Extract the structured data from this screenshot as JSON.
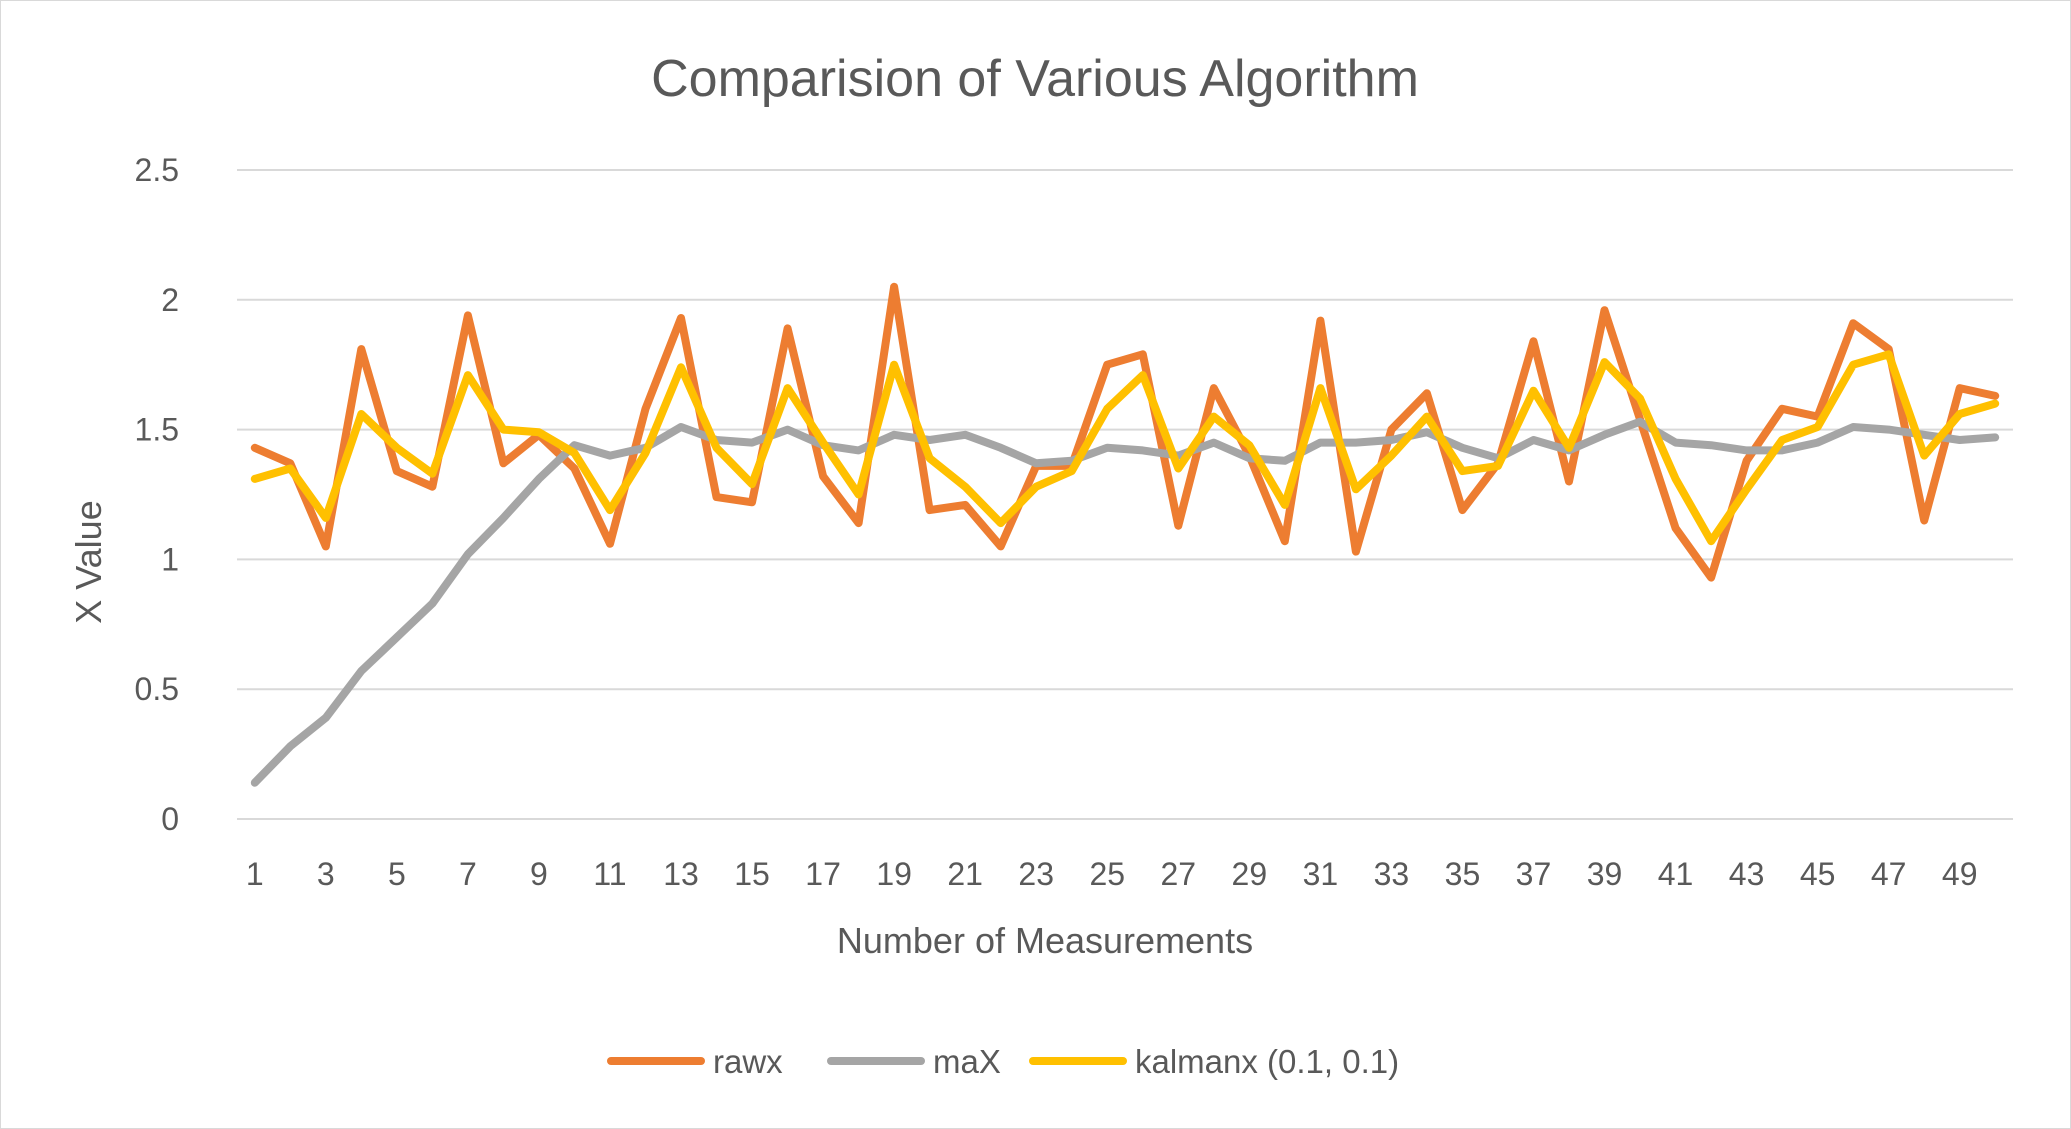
{
  "chart_data": {
    "type": "line",
    "title": "Comparision of Various Algorithm",
    "xlabel": "Number of Measurements",
    "ylabel": "X Value",
    "ylim": [
      0,
      2.5
    ],
    "y_ticks": [
      "0",
      "0.5",
      "1",
      "1.5",
      "2",
      "2.5"
    ],
    "y_tick_values": [
      0,
      0.5,
      1,
      1.5,
      2,
      2.5
    ],
    "x": [
      1,
      2,
      3,
      4,
      5,
      6,
      7,
      8,
      9,
      10,
      11,
      12,
      13,
      14,
      15,
      16,
      17,
      18,
      19,
      20,
      21,
      22,
      23,
      24,
      25,
      26,
      27,
      28,
      29,
      30,
      31,
      32,
      33,
      34,
      35,
      36,
      37,
      38,
      39,
      40,
      41,
      42,
      43,
      44,
      45,
      46,
      47,
      48,
      49,
      50
    ],
    "x_tick_labels": [
      "1",
      "3",
      "5",
      "7",
      "9",
      "11",
      "13",
      "15",
      "17",
      "19",
      "21",
      "23",
      "25",
      "27",
      "29",
      "31",
      "33",
      "35",
      "37",
      "39",
      "41",
      "43",
      "45",
      "47",
      "49"
    ],
    "grid": true,
    "legend_position": "bottom",
    "series": [
      {
        "name": "rawx",
        "color": "#ED7D31",
        "values": [
          1.43,
          1.37,
          1.05,
          1.81,
          1.34,
          1.28,
          1.94,
          1.37,
          1.48,
          1.35,
          1.06,
          1.58,
          1.93,
          1.24,
          1.22,
          1.89,
          1.32,
          1.14,
          2.05,
          1.19,
          1.21,
          1.05,
          1.36,
          1.36,
          1.75,
          1.79,
          1.13,
          1.66,
          1.4,
          1.07,
          1.92,
          1.03,
          1.5,
          1.64,
          1.19,
          1.37,
          1.84,
          1.3,
          1.96,
          1.54,
          1.12,
          0.93,
          1.38,
          1.58,
          1.55,
          1.91,
          1.81,
          1.15,
          1.66,
          1.63
        ]
      },
      {
        "name": "maX",
        "color": "#A5A5A5",
        "values": [
          0.14,
          0.28,
          0.39,
          0.57,
          0.7,
          0.83,
          1.02,
          1.16,
          1.31,
          1.44,
          1.4,
          1.43,
          1.51,
          1.46,
          1.45,
          1.5,
          1.44,
          1.42,
          1.48,
          1.46,
          1.48,
          1.43,
          1.37,
          1.38,
          1.43,
          1.42,
          1.4,
          1.45,
          1.39,
          1.38,
          1.45,
          1.45,
          1.46,
          1.49,
          1.43,
          1.39,
          1.46,
          1.42,
          1.48,
          1.53,
          1.45,
          1.44,
          1.42,
          1.42,
          1.45,
          1.51,
          1.5,
          1.48,
          1.46,
          1.47
        ]
      },
      {
        "name": "kalmanx (0.1, 0.1)",
        "color": "#FFC000",
        "values": [
          1.31,
          1.35,
          1.16,
          1.56,
          1.43,
          1.33,
          1.71,
          1.5,
          1.49,
          1.41,
          1.19,
          1.41,
          1.74,
          1.43,
          1.29,
          1.66,
          1.45,
          1.25,
          1.75,
          1.39,
          1.28,
          1.14,
          1.28,
          1.34,
          1.58,
          1.71,
          1.35,
          1.55,
          1.44,
          1.21,
          1.66,
          1.27,
          1.4,
          1.55,
          1.34,
          1.36,
          1.65,
          1.43,
          1.76,
          1.62,
          1.31,
          1.07,
          1.27,
          1.46,
          1.51,
          1.75,
          1.79,
          1.4,
          1.56,
          1.6
        ]
      }
    ]
  }
}
